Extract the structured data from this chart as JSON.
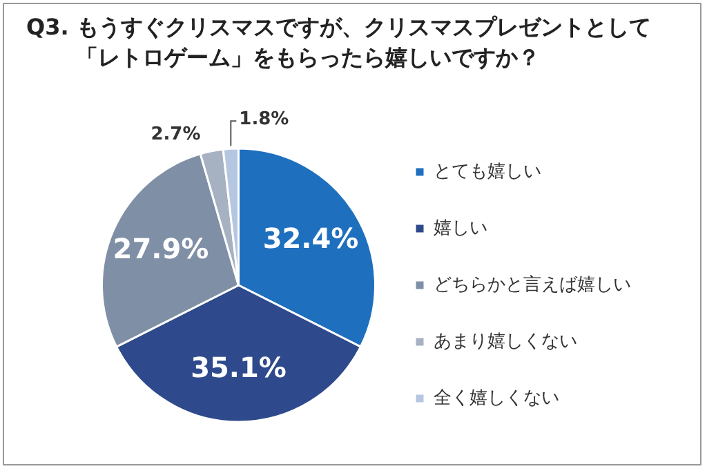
{
  "chart_data": {
    "type": "pie",
    "title": "Q3. もうすぐクリスマスですが、クリスマスプレゼントとして「レトロゲーム」をもらったら嬉しいですか？",
    "categories": [
      "とても嬉しい",
      "嬉しい",
      "どちらかと言えば嬉しい",
      "あまり嬉しくない",
      "全く嬉しくない"
    ],
    "values": [
      32.4,
      35.1,
      27.9,
      2.7,
      1.8
    ],
    "colors": [
      "#1f6fbf",
      "#2e4a8c",
      "#7f8fa6",
      "#a6b1c2",
      "#b5c6e0"
    ],
    "value_labels": [
      "32.4%",
      "35.1%",
      "27.9%",
      "2.7%",
      "1.8%"
    ],
    "legend": "right"
  }
}
